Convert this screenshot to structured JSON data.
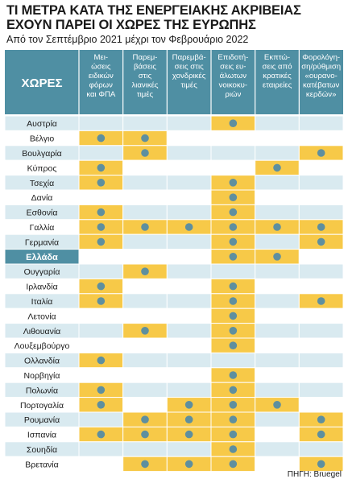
{
  "title_line1": "ΤΙ ΜΕΤΡΑ ΚΑΤΑ ΤΗΣ ΕΝΕΡΓΕΙΑΚΗΣ ΑΚΡΙΒΕΙΑΣ",
  "title_line2": "ΕΧΟΥΝ ΠΑΡΕΙ ΟΙ ΧΩΡΕΣ ΤΗΣ ΕΥΡΩΠΗΣ",
  "subtitle": "Από τον Σεπτέμβριο 2021 μέχρι τον Φεβρουάριο 2022",
  "source": "ΠΗΓΗ: Bruegel",
  "colors": {
    "header_bg": "#4f8fa3",
    "row_light": "#d9eaf0",
    "row_white": "#ffffff",
    "highlight_row": "#4f8fa3",
    "yellow_cell": "#f7c948",
    "dot": "#5e8f9f",
    "border": "#ffffff"
  },
  "chart_data": {
    "type": "table",
    "first_column_header": "ΧΩΡΕΣ",
    "highlighted_country": "Ελλάδα",
    "columns": [
      [
        "Μει-",
        "ώσεις",
        "ειδικών",
        "φόρων",
        "και ΦΠΑ"
      ],
      [
        "Παρεμ-",
        "βάσεις",
        "στις",
        "λιανικές",
        "τιμές"
      ],
      [
        "Παρεμβά-",
        "σεις στις",
        "χονδρικές",
        "τιμές"
      ],
      [
        "Επιδοτή-",
        "σεις ευ-",
        "άλωτων",
        "νοικοκυ-",
        "ριών"
      ],
      [
        "Εκπτώ-",
        "σεις από",
        "κρατικές",
        "εταιρείες"
      ],
      [
        "Φορολόγη-",
        "ση/ρύθμιση",
        "«ουρανο-",
        "κατέβατων",
        "κερδών»"
      ]
    ],
    "rows": [
      {
        "country": "Αυστρία",
        "measures": [
          0,
          0,
          0,
          1,
          0,
          0
        ]
      },
      {
        "country": "Βέλγιο",
        "measures": [
          1,
          1,
          0,
          0,
          0,
          0
        ]
      },
      {
        "country": "Βουλγαρία",
        "measures": [
          0,
          1,
          0,
          0,
          0,
          1
        ]
      },
      {
        "country": "Κύπρος",
        "measures": [
          1,
          0,
          0,
          0,
          1,
          0
        ]
      },
      {
        "country": "Τσεχία",
        "measures": [
          1,
          0,
          0,
          1,
          0,
          0
        ]
      },
      {
        "country": "Δανία",
        "measures": [
          0,
          0,
          0,
          1,
          0,
          0
        ]
      },
      {
        "country": "Εσθονία",
        "measures": [
          1,
          0,
          0,
          1,
          0,
          0
        ]
      },
      {
        "country": "Γαλλία",
        "measures": [
          1,
          1,
          1,
          1,
          1,
          1
        ]
      },
      {
        "country": "Γερμανία",
        "measures": [
          1,
          0,
          0,
          1,
          0,
          1
        ]
      },
      {
        "country": "Ελλάδα",
        "measures": [
          0,
          0,
          0,
          1,
          1,
          0
        ]
      },
      {
        "country": "Ουγγαρία",
        "measures": [
          0,
          1,
          0,
          0,
          0,
          0
        ]
      },
      {
        "country": "Ιρλανδία",
        "measures": [
          1,
          0,
          0,
          1,
          0,
          0
        ]
      },
      {
        "country": "Ιταλία",
        "measures": [
          1,
          0,
          0,
          1,
          0,
          1
        ]
      },
      {
        "country": "Λετονία",
        "measures": [
          0,
          0,
          0,
          1,
          0,
          0
        ]
      },
      {
        "country": "Λιθουανία",
        "measures": [
          0,
          1,
          0,
          1,
          0,
          0
        ]
      },
      {
        "country": "Λουξεμβούργο",
        "measures": [
          0,
          0,
          0,
          1,
          0,
          0
        ]
      },
      {
        "country": "Ολλανδία",
        "measures": [
          1,
          0,
          0,
          0,
          0,
          0
        ]
      },
      {
        "country": "Νορβηγία",
        "measures": [
          0,
          0,
          0,
          1,
          0,
          0
        ]
      },
      {
        "country": "Πολωνία",
        "measures": [
          1,
          0,
          0,
          1,
          0,
          0
        ]
      },
      {
        "country": "Πορτογαλία",
        "measures": [
          1,
          0,
          1,
          1,
          1,
          0
        ]
      },
      {
        "country": "Ρουμανία",
        "measures": [
          0,
          1,
          1,
          1,
          0,
          1
        ]
      },
      {
        "country": "Ισπανία",
        "measures": [
          1,
          1,
          1,
          1,
          0,
          1
        ]
      },
      {
        "country": "Σουηδία",
        "measures": [
          0,
          0,
          0,
          1,
          0,
          0
        ]
      },
      {
        "country": "Βρετανία",
        "measures": [
          0,
          1,
          1,
          1,
          0,
          1
        ]
      }
    ]
  }
}
